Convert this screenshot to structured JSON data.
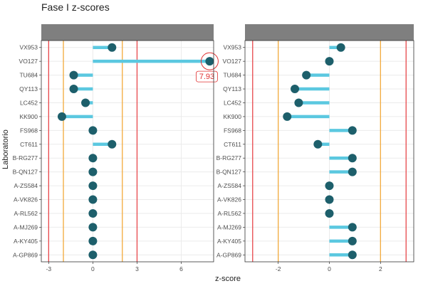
{
  "title": "Fase I z-scores",
  "chart_data": [
    {
      "type": "lollipop",
      "panel": "left",
      "strip_label": "",
      "xlabel": "z-score",
      "ylabel": "Laboratorio",
      "xlim": [
        -3.5,
        8.2
      ],
      "x_ticks": [
        -3,
        0,
        3,
        6
      ],
      "x_tick_labels": [
        "-3",
        "0",
        "3",
        "6"
      ],
      "reference_lines": [
        {
          "x": -3,
          "color": "#e8474b"
        },
        {
          "x": 3,
          "color": "#e8474b"
        },
        {
          "x": -2,
          "color": "#f2a93b"
        },
        {
          "x": 2,
          "color": "#f2a93b"
        }
      ],
      "categories": [
        "VX953",
        "VO127",
        "TU684",
        "QY113",
        "LC452",
        "KK900",
        "FS968",
        "CT611",
        "B-RG277",
        "B-QN127",
        "A-ZS584",
        "A-VK826",
        "A-RL562",
        "A-MJ269",
        "A-KY405",
        "A-GP869"
      ],
      "values": [
        1.3,
        7.93,
        -1.3,
        -1.3,
        -0.5,
        -2.1,
        0.0,
        1.3,
        0.0,
        0.0,
        0.0,
        0.0,
        0.0,
        0.0,
        0.0,
        0.0
      ],
      "annotations": [
        {
          "category": "VO127",
          "label": "7.93"
        }
      ],
      "grid": true
    },
    {
      "type": "lollipop",
      "panel": "right",
      "strip_label": "",
      "xlabel": "z-score",
      "xlim": [
        -3.3,
        3.3
      ],
      "x_ticks": [
        -2,
        0,
        2
      ],
      "x_tick_labels": [
        "-2",
        "0",
        "2"
      ],
      "reference_lines": [
        {
          "x": -3,
          "color": "#e8474b"
        },
        {
          "x": 3,
          "color": "#e8474b"
        },
        {
          "x": -2,
          "color": "#f2a93b"
        },
        {
          "x": 2,
          "color": "#f2a93b"
        }
      ],
      "categories": [
        "VX953",
        "VO127",
        "TU684",
        "QY113",
        "LC452",
        "KK900",
        "FS968",
        "CT611",
        "B-RG277",
        "B-QN127",
        "A-ZS584",
        "A-VK826",
        "A-RL562",
        "A-MJ269",
        "A-KY405",
        "A-GP869"
      ],
      "values": [
        0.45,
        0.0,
        -0.9,
        -1.35,
        -1.2,
        -1.65,
        0.9,
        -0.45,
        0.9,
        0.9,
        0.0,
        0.0,
        0.0,
        0.9,
        0.9,
        0.9
      ],
      "grid": true
    }
  ],
  "colors": {
    "stem": "#5bc8e0",
    "point": "#1d5f6b",
    "strip": "#7f7f7f",
    "grid": "#ebebeb",
    "panel_border": "#333333",
    "highlight": "#e03030"
  }
}
